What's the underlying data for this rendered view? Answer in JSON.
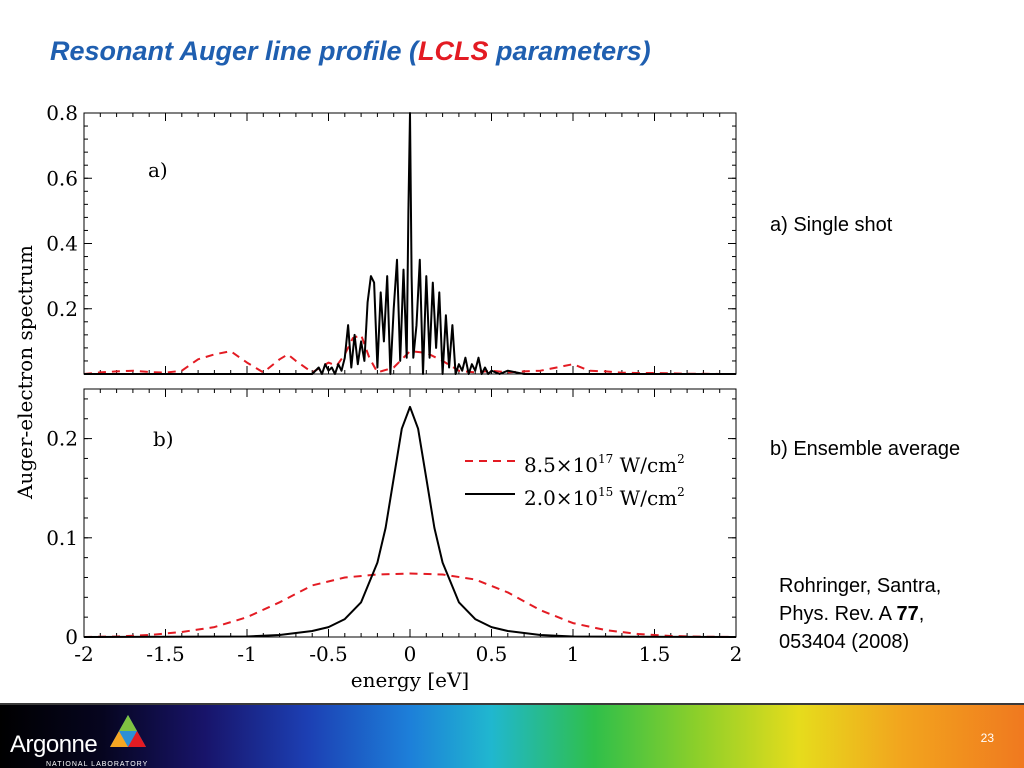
{
  "title": {
    "part1": "Resonant Auger line profile (",
    "highlight": "LCLS",
    "part2": " parameters)"
  },
  "notes": {
    "a": "a) Single shot",
    "b": "b) Ensemble average"
  },
  "reference": {
    "authors": "Rohringer, Santra,",
    "journal": "Phys. Rev. A ",
    "volume": "77",
    "comma": ",",
    "pages": "053404 (2008)"
  },
  "footer": {
    "logo_name": "Argonne",
    "logo_sub": "NATIONAL LABORATORY",
    "page_number": "23"
  },
  "colors": {
    "title": "#1f5fb0",
    "highlight": "#e31b23",
    "dashed_series": "#e31b23",
    "solid_series": "#000000"
  },
  "chart_data": [
    {
      "type": "line",
      "panel_label": "a)",
      "xlim": [
        -2,
        2
      ],
      "ylim": [
        0,
        0.8
      ],
      "yticks": [
        0.2,
        0.4,
        0.6,
        0.8
      ],
      "ytick_labels": [
        "0.2",
        "0.4",
        "0.6",
        "0.8"
      ],
      "ylabel": "Auger-electron spectrum",
      "series": [
        {
          "style": "dashed",
          "color": "#e31b23",
          "x": [
            -2.0,
            -1.9,
            -1.8,
            -1.7,
            -1.6,
            -1.5,
            -1.4,
            -1.3,
            -1.2,
            -1.1,
            -1.0,
            -0.9,
            -0.8,
            -0.75,
            -0.7,
            -0.6,
            -0.55,
            -0.5,
            -0.45,
            -0.4,
            -0.35,
            -0.3,
            -0.25,
            -0.2,
            -0.1,
            0.0,
            0.1,
            0.2,
            0.3,
            0.4,
            0.5,
            0.6,
            0.7,
            0.8,
            0.9,
            1.0,
            1.1,
            1.2,
            1.3,
            1.4,
            1.5,
            1.6,
            1.7,
            1.8,
            1.9,
            2.0
          ],
          "y": [
            0.0,
            0.005,
            0.008,
            0.01,
            0.006,
            0.004,
            0.01,
            0.045,
            0.06,
            0.07,
            0.035,
            0.005,
            0.045,
            0.06,
            0.04,
            0.005,
            0.02,
            0.035,
            0.025,
            0.06,
            0.11,
            0.12,
            0.05,
            0.005,
            0.02,
            0.07,
            0.065,
            0.04,
            0.01,
            0.005,
            0.01,
            0.005,
            0.008,
            0.01,
            0.02,
            0.03,
            0.01,
            0.008,
            0.004,
            0.003,
            0.003,
            0.002,
            0.001,
            0.001,
            0.0,
            0.0
          ]
        },
        {
          "style": "solid",
          "color": "#000000",
          "x": [
            -2.0,
            -0.6,
            -0.56,
            -0.54,
            -0.52,
            -0.5,
            -0.48,
            -0.46,
            -0.44,
            -0.42,
            -0.4,
            -0.38,
            -0.36,
            -0.34,
            -0.32,
            -0.3,
            -0.28,
            -0.26,
            -0.24,
            -0.22,
            -0.2,
            -0.18,
            -0.16,
            -0.14,
            -0.12,
            -0.1,
            -0.08,
            -0.06,
            -0.04,
            -0.02,
            -0.01,
            0.0,
            0.01,
            0.02,
            0.04,
            0.06,
            0.08,
            0.1,
            0.12,
            0.14,
            0.16,
            0.18,
            0.2,
            0.22,
            0.24,
            0.26,
            0.28,
            0.3,
            0.32,
            0.34,
            0.36,
            0.38,
            0.4,
            0.42,
            0.44,
            0.46,
            0.48,
            0.5,
            0.55,
            0.6,
            0.7,
            2.0
          ],
          "y": [
            0.0,
            0.0,
            0.02,
            0.0,
            0.03,
            0.01,
            0.02,
            0.0,
            0.03,
            0.01,
            0.05,
            0.15,
            0.02,
            0.12,
            0.03,
            0.1,
            0.04,
            0.22,
            0.3,
            0.28,
            0.02,
            0.25,
            0.1,
            0.3,
            0.0,
            0.2,
            0.35,
            0.04,
            0.32,
            0.05,
            0.5,
            0.8,
            0.3,
            0.05,
            0.15,
            0.35,
            0.0,
            0.3,
            0.05,
            0.28,
            0.08,
            0.25,
            0.0,
            0.18,
            0.02,
            0.15,
            0.0,
            0.03,
            0.01,
            0.05,
            0.0,
            0.03,
            0.01,
            0.05,
            0.0,
            0.02,
            0.0,
            0.01,
            0.0,
            0.01,
            0.0,
            0.0
          ]
        }
      ]
    },
    {
      "type": "line",
      "panel_label": "b)",
      "xlim": [
        -2,
        2
      ],
      "ylim": [
        0,
        0.25
      ],
      "yticks": [
        0,
        0.1,
        0.2
      ],
      "ytick_labels": [
        "0",
        "0.1",
        "0.2"
      ],
      "xticks": [
        -2,
        -1.5,
        -1,
        -0.5,
        0,
        0.5,
        1,
        1.5,
        2
      ],
      "xtick_labels": [
        "-2",
        "-1.5",
        "-1",
        "-0.5",
        "0",
        "0.5",
        "1",
        "1.5",
        "2"
      ],
      "xlabel": "energy [eV]",
      "legend_position": "top-right",
      "series": [
        {
          "style": "dashed",
          "color": "#e31b23",
          "legend_base": "8.5×10",
          "legend_exp": "17",
          "legend_unit": " W/cm",
          "legend_unit_exp": "2",
          "x": [
            -2.0,
            -1.8,
            -1.6,
            -1.4,
            -1.2,
            -1.0,
            -0.8,
            -0.6,
            -0.4,
            -0.2,
            0.0,
            0.2,
            0.4,
            0.6,
            0.8,
            1.0,
            1.2,
            1.4,
            1.6,
            1.8,
            2.0
          ],
          "y": [
            0.0,
            0.0005,
            0.002,
            0.005,
            0.01,
            0.02,
            0.035,
            0.052,
            0.06,
            0.063,
            0.064,
            0.063,
            0.058,
            0.045,
            0.027,
            0.014,
            0.007,
            0.003,
            0.001,
            0.0003,
            0.0
          ]
        },
        {
          "style": "solid",
          "color": "#000000",
          "legend_base": "2.0×10",
          "legend_exp": "15",
          "legend_unit": " W/cm",
          "legend_unit_exp": "2",
          "x": [
            -2.0,
            -1.0,
            -0.8,
            -0.6,
            -0.5,
            -0.4,
            -0.3,
            -0.2,
            -0.15,
            -0.1,
            -0.05,
            0.0,
            0.05,
            0.1,
            0.15,
            0.2,
            0.3,
            0.4,
            0.5,
            0.6,
            0.8,
            1.0,
            2.0
          ],
          "y": [
            0.0,
            0.0005,
            0.002,
            0.006,
            0.01,
            0.018,
            0.035,
            0.075,
            0.11,
            0.16,
            0.21,
            0.232,
            0.21,
            0.16,
            0.11,
            0.075,
            0.035,
            0.018,
            0.01,
            0.006,
            0.002,
            0.0005,
            0.0
          ]
        }
      ]
    }
  ]
}
